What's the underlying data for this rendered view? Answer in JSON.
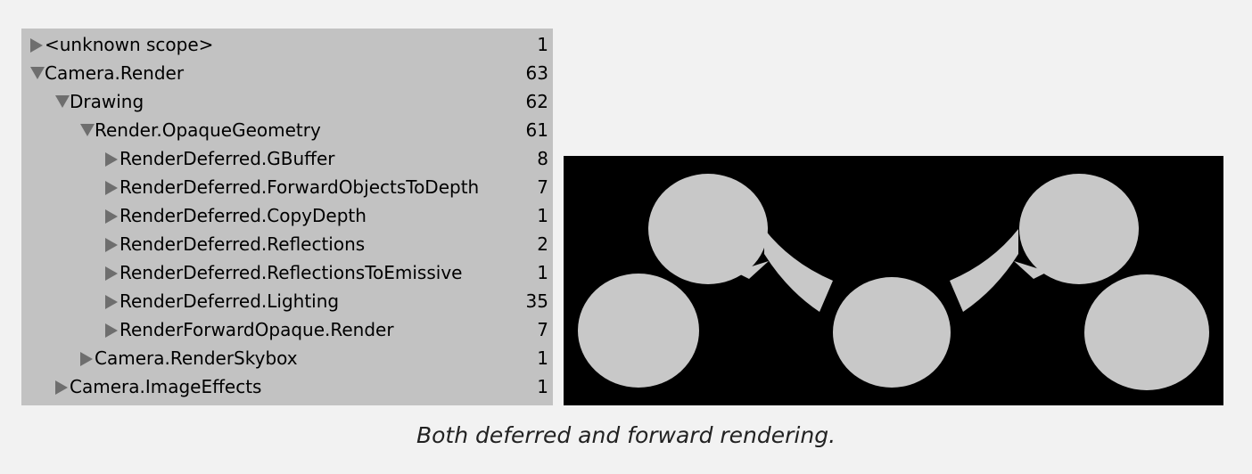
{
  "profiler": {
    "rows": [
      {
        "label": "<unknown scope>",
        "count": "1",
        "depth": 0,
        "expanded": false
      },
      {
        "label": "Camera.Render",
        "count": "63",
        "depth": 0,
        "expanded": true
      },
      {
        "label": "Drawing",
        "count": "62",
        "depth": 1,
        "expanded": true
      },
      {
        "label": "Render.OpaqueGeometry",
        "count": "61",
        "depth": 2,
        "expanded": true
      },
      {
        "label": "RenderDeferred.GBuffer",
        "count": "8",
        "depth": 3,
        "expanded": false
      },
      {
        "label": "RenderDeferred.ForwardObjectsToDepth",
        "count": "7",
        "depth": 3,
        "expanded": false
      },
      {
        "label": "RenderDeferred.CopyDepth",
        "count": "1",
        "depth": 3,
        "expanded": false
      },
      {
        "label": "RenderDeferred.Reflections",
        "count": "2",
        "depth": 3,
        "expanded": false
      },
      {
        "label": "RenderDeferred.ReflectionsToEmissive",
        "count": "1",
        "depth": 3,
        "expanded": false
      },
      {
        "label": "RenderDeferred.Lighting",
        "count": "35",
        "depth": 3,
        "expanded": false
      },
      {
        "label": "RenderForwardOpaque.Render",
        "count": "7",
        "depth": 3,
        "expanded": false
      },
      {
        "label": "Camera.RenderSkybox",
        "count": "1",
        "depth": 2,
        "expanded": false
      },
      {
        "label": "Camera.ImageEffects",
        "count": "1",
        "depth": 1,
        "expanded": false
      }
    ]
  },
  "caption": "Both deferred and forward rendering.",
  "colors": {
    "panel_bg": "#c2c2c2",
    "toggle_icon": "#6e6e6e",
    "shape_fill": "#c8c8c8",
    "preview_bg": "#000000"
  }
}
